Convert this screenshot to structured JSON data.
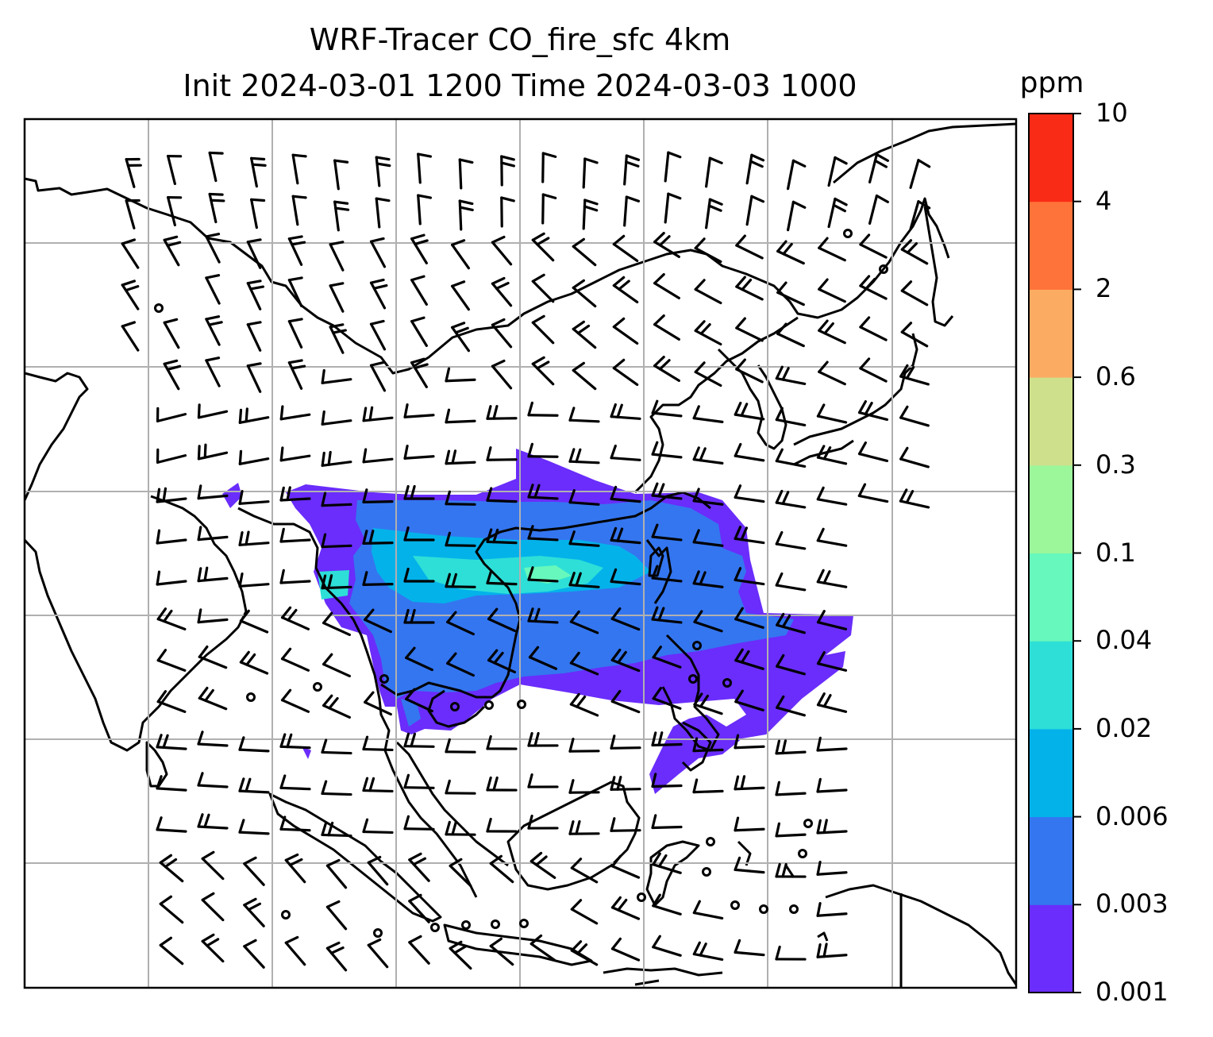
{
  "title": {
    "line1": "WRF-Tracer CO_fire_sfc 4km",
    "line2": "Init 2024-03-01 1200 Time 2024-03-03 1000"
  },
  "colorbar": {
    "unit": "ppm",
    "levels": [
      "0.001",
      "0.003",
      "0.006",
      "0.02",
      "0.04",
      "0.1",
      "0.3",
      "0.6",
      "2",
      "4",
      "10"
    ],
    "colors": [
      "#6a2dfb",
      "#3476f0",
      "#04b2ea",
      "#2ddfd7",
      "#66f8bc",
      "#9cf79b",
      "#cfe08c",
      "#fcab63",
      "#fe7339",
      "#fa2b16"
    ]
  },
  "map": {
    "field": "CO_fire_sfc",
    "coastline_color": "#000000",
    "gridline_color": "#b0b0b0",
    "wind_barb_color": "#000000"
  }
}
